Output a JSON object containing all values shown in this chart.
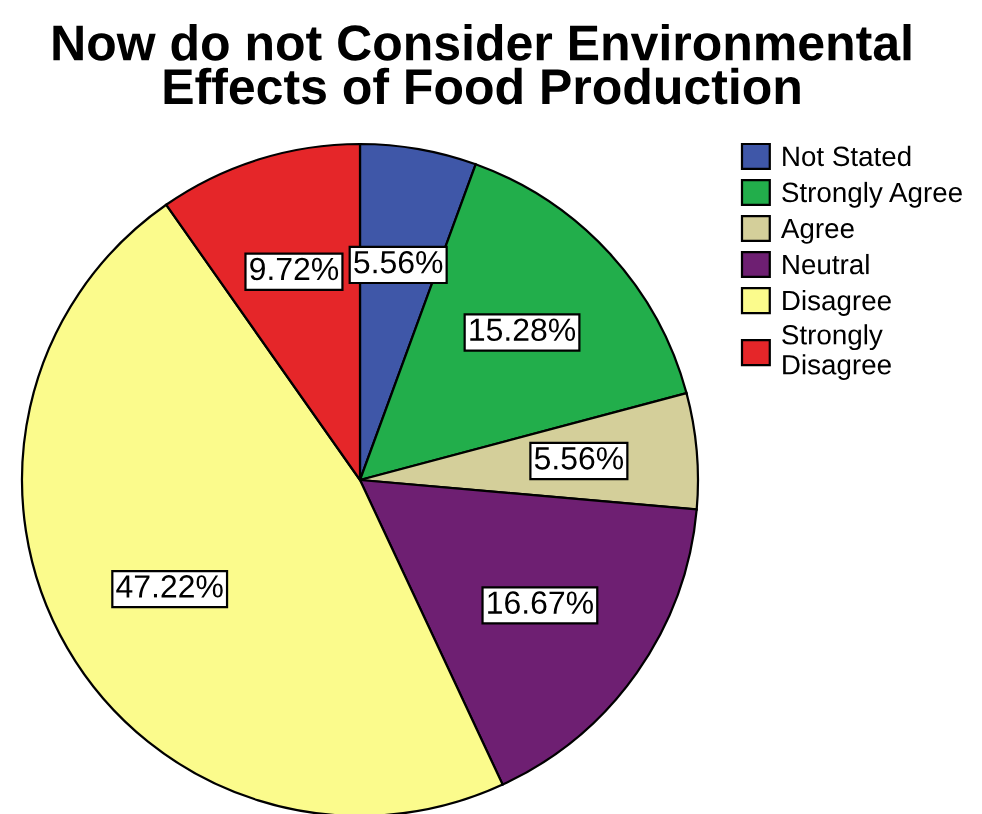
{
  "chart_data": {
    "type": "pie",
    "title": "Now do not Consider Environmental\nEffects of Food Production",
    "categories": [
      "Not Stated",
      "Strongly Agree",
      "Agree",
      "Neutral",
      "Disagree",
      "Strongly\nDisagree"
    ],
    "values": [
      5.56,
      15.28,
      5.56,
      16.67,
      47.22,
      9.72
    ],
    "value_labels": [
      "5.56%",
      "15.28%",
      "5.56%",
      "16.67%",
      "47.22%",
      "9.72%"
    ],
    "colors": [
      "#3f57a8",
      "#22ae4b",
      "#d4cf9a",
      "#6e1f72",
      "#fbfb8c",
      "#e52629"
    ],
    "legend": "top right"
  }
}
